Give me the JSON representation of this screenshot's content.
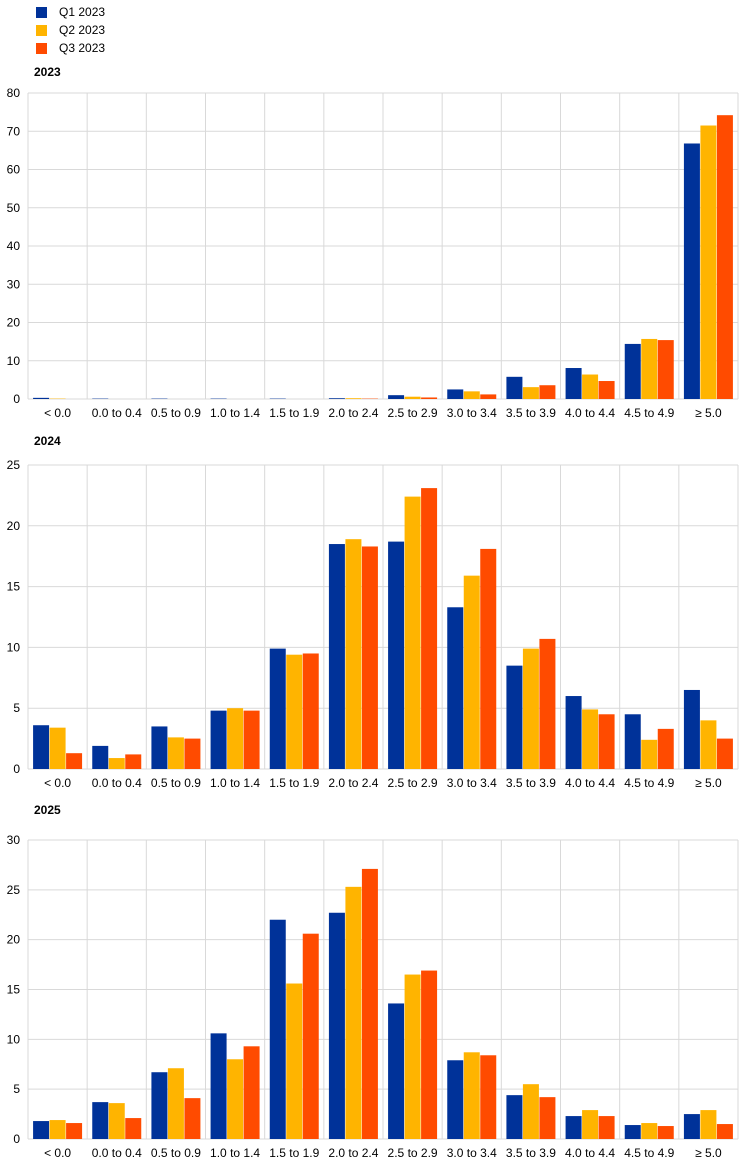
{
  "colors": {
    "Q1 2023": "#003299",
    "Q2 2023": "#FFB400",
    "Q3 2023": "#FF4B00"
  },
  "chart_data": [
    {
      "type": "bar",
      "title": "2023",
      "categories": [
        "< 0.0",
        "0.0 to 0.4",
        "0.5 to 0.9",
        "1.0 to 1.4",
        "1.5 to 1.9",
        "2.0 to 2.4",
        "2.5 to 2.9",
        "3.0 to 3.4",
        "3.5 to 3.9",
        "4.0 to 4.4",
        "4.5 to 4.9",
        "≥ 5.0"
      ],
      "series": [
        {
          "name": "Q1 2023",
          "values": [
            0.3,
            0.1,
            0.1,
            0.1,
            0.1,
            0.2,
            1.0,
            2.5,
            5.8,
            8.1,
            14.4,
            66.8
          ]
        },
        {
          "name": "Q2 2023",
          "values": [
            0.1,
            0.0,
            0.0,
            0.0,
            0.0,
            0.2,
            0.6,
            2.0,
            3.1,
            6.4,
            15.7,
            71.5
          ]
        },
        {
          "name": "Q3 2023",
          "values": [
            0.0,
            0.0,
            0.0,
            0.0,
            0.0,
            0.1,
            0.4,
            1.2,
            3.6,
            4.7,
            15.4,
            74.2
          ]
        }
      ],
      "ylim": [
        0,
        80
      ],
      "yticks": [
        0,
        10,
        20,
        30,
        40,
        50,
        60,
        70,
        80
      ],
      "grid": true
    },
    {
      "type": "bar",
      "title": "2024",
      "categories": [
        "< 0.0",
        "0.0 to 0.4",
        "0.5 to 0.9",
        "1.0 to 1.4",
        "1.5 to 1.9",
        "2.0 to 2.4",
        "2.5 to 2.9",
        "3.0 to 3.4",
        "3.5 to 3.9",
        "4.0 to 4.4",
        "4.5 to 4.9",
        "≥ 5.0"
      ],
      "series": [
        {
          "name": "Q1 2023",
          "values": [
            3.6,
            1.9,
            3.5,
            4.8,
            9.9,
            18.5,
            18.7,
            13.3,
            8.5,
            6.0,
            4.5,
            6.5
          ]
        },
        {
          "name": "Q2 2023",
          "values": [
            3.4,
            0.9,
            2.6,
            5.0,
            9.4,
            18.9,
            22.4,
            15.9,
            9.9,
            4.9,
            2.4,
            4.0
          ]
        },
        {
          "name": "Q3 2023",
          "values": [
            1.3,
            1.2,
            2.5,
            4.8,
            9.5,
            18.3,
            23.1,
            18.1,
            10.7,
            4.5,
            3.3,
            2.5
          ]
        }
      ],
      "ylim": [
        0,
        25
      ],
      "yticks": [
        0,
        5,
        10,
        15,
        20,
        25
      ],
      "grid": true
    },
    {
      "type": "bar",
      "title": "2025",
      "categories": [
        "< 0.0",
        "0.0 to 0.4",
        "0.5 to 0.9",
        "1.0 to 1.4",
        "1.5 to 1.9",
        "2.0 to 2.4",
        "2.5 to 2.9",
        "3.0 to 3.4",
        "3.5 to 3.9",
        "4.0 to 4.4",
        "4.5 to 4.9",
        "≥ 5.0"
      ],
      "series": [
        {
          "name": "Q1 2023",
          "values": [
            1.8,
            3.7,
            6.7,
            10.6,
            22.0,
            22.7,
            13.6,
            7.9,
            4.4,
            2.3,
            1.4,
            2.5
          ]
        },
        {
          "name": "Q2 2023",
          "values": [
            1.9,
            3.6,
            7.1,
            8.0,
            15.6,
            25.3,
            16.5,
            8.7,
            5.5,
            2.9,
            1.6,
            2.9
          ]
        },
        {
          "name": "Q3 2023",
          "values": [
            1.6,
            2.1,
            4.1,
            9.3,
            20.6,
            27.1,
            16.9,
            8.4,
            4.2,
            2.3,
            1.3,
            1.5
          ]
        }
      ],
      "ylim": [
        0,
        30
      ],
      "yticks": [
        0,
        5,
        10,
        15,
        20,
        25,
        30
      ],
      "grid": true
    }
  ]
}
